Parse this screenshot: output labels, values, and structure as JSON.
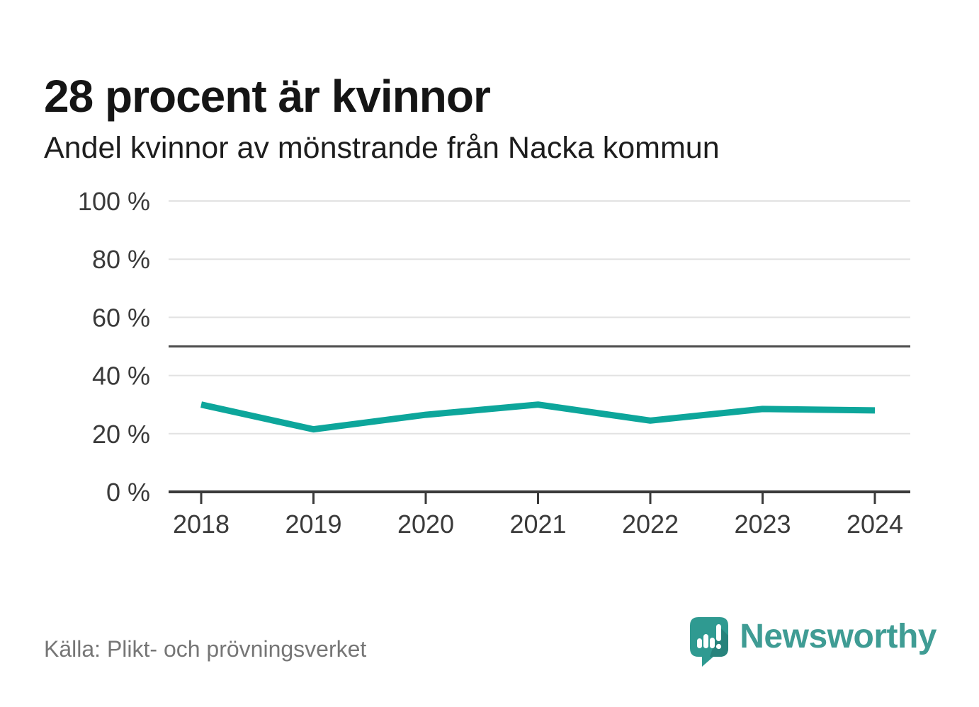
{
  "chart_data": {
    "type": "line",
    "title": "28 procent är kvinnor",
    "subtitle": "Andel kvinnor av mönstrande från Nacka kommun",
    "categories": [
      "2018",
      "2019",
      "2020",
      "2021",
      "2022",
      "2023",
      "2024"
    ],
    "values": [
      30,
      21.5,
      26.5,
      30,
      24.5,
      28.5,
      28
    ],
    "unit": "%",
    "xlabel": "",
    "ylabel": "",
    "ylim": [
      0,
      100
    ],
    "yticks": [
      0,
      20,
      40,
      60,
      80,
      100
    ],
    "ytick_suffix": " %",
    "reference_line": 50,
    "grid": "horizontal",
    "legend": "none",
    "line_color": "#0da69b"
  },
  "footer": {
    "source": "Källa: Plikt- och prövningsverket",
    "brand_name": "Newsworthy"
  },
  "colors": {
    "line": "#0da69b",
    "grid": "#e2e2e2",
    "reference_line": "#4d4d4d",
    "axis": "#3a3a3a",
    "axis_text": "#3a3a3a",
    "title_text": "#151515",
    "muted_text": "#767676",
    "brand_teal": "#3f9c94",
    "logo_bubble": "#2f9a91",
    "logo_shadow": "#27837c",
    "background": "#ffffff"
  }
}
